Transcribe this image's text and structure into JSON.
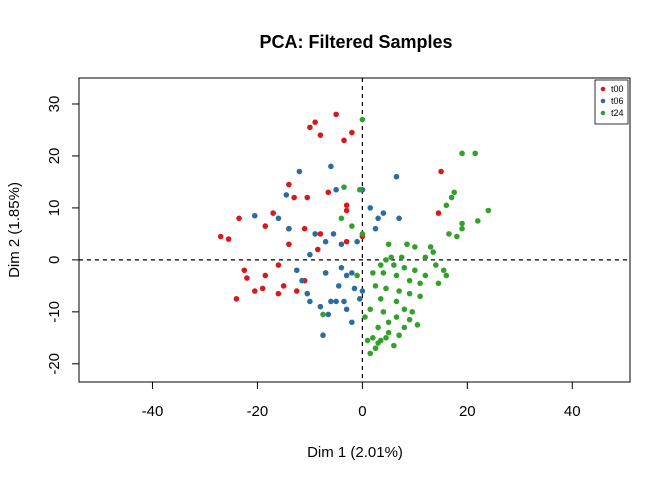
{
  "chart_data": {
    "type": "scatter",
    "title": "PCA: Filtered Samples",
    "xlabel": "Dim 1 (2.01%)",
    "ylabel": "Dim 2 (1.85%)",
    "xlim": [
      -54,
      51
    ],
    "ylim": [
      -23.5,
      35
    ],
    "xticks": [
      -40,
      -20,
      0,
      20,
      40
    ],
    "yticks": [
      -20,
      -10,
      0,
      10,
      20,
      30
    ],
    "reference_lines": {
      "vertical": 0,
      "horizontal": 0,
      "style": "dashed"
    },
    "grid": false,
    "legend_position": "top-right",
    "series": [
      {
        "name": "t00",
        "color": "#d7191c",
        "points": [
          [
            -9,
            26.5
          ],
          [
            -10,
            25.5
          ],
          [
            -5,
            28
          ],
          [
            -8,
            24
          ],
          [
            -3.5,
            23
          ],
          [
            -2,
            24.5
          ],
          [
            15,
            17
          ],
          [
            -14,
            14.5
          ],
          [
            -13,
            12
          ],
          [
            -10.5,
            12
          ],
          [
            -6.5,
            13
          ],
          [
            -3,
            10.5
          ],
          [
            -3,
            9.5
          ],
          [
            14.5,
            9
          ],
          [
            -17,
            9
          ],
          [
            -23.5,
            8
          ],
          [
            -18.5,
            6.5
          ],
          [
            -11,
            6
          ],
          [
            -14,
            6
          ],
          [
            -8,
            5
          ],
          [
            -3,
            3.5
          ],
          [
            0,
            4.5
          ],
          [
            -27,
            4.5
          ],
          [
            -25.5,
            4
          ],
          [
            -14,
            3
          ],
          [
            -8.5,
            2
          ],
          [
            -22.5,
            -2
          ],
          [
            -7,
            -2.5
          ],
          [
            -18.5,
            -3
          ],
          [
            -16,
            -1
          ],
          [
            -15,
            -5
          ],
          [
            -11,
            -4
          ],
          [
            -12.5,
            -6
          ],
          [
            -16,
            -6.5
          ],
          [
            -22,
            -3.5
          ],
          [
            -19,
            -5.5
          ],
          [
            -24,
            -7.5
          ],
          [
            -20.5,
            -6
          ]
        ]
      },
      {
        "name": "t06",
        "color": "#2c6ca4",
        "points": [
          [
            -6,
            18
          ],
          [
            -12,
            17
          ],
          [
            6.5,
            16
          ],
          [
            -5,
            13.5
          ],
          [
            0,
            13.5
          ],
          [
            -14.5,
            12.5
          ],
          [
            1.5,
            10
          ],
          [
            4,
            9
          ],
          [
            -20.5,
            8.5
          ],
          [
            3,
            8
          ],
          [
            7,
            8
          ],
          [
            -16,
            8
          ],
          [
            -14,
            6
          ],
          [
            2.5,
            6
          ],
          [
            -9,
            5
          ],
          [
            -5.5,
            5
          ],
          [
            -1,
            3.5
          ],
          [
            -7,
            3.5
          ],
          [
            -4,
            3
          ],
          [
            -10,
            1
          ],
          [
            -12.5,
            -2
          ],
          [
            -4,
            -1.5
          ],
          [
            -7,
            -2.5
          ],
          [
            -2,
            -2.5
          ],
          [
            -3,
            -3
          ],
          [
            -11.5,
            -4
          ],
          [
            -10.5,
            -6.5
          ],
          [
            -4.5,
            -5
          ],
          [
            -1.5,
            -5.5
          ],
          [
            0,
            -6
          ],
          [
            -3.5,
            -8
          ],
          [
            -0.5,
            -7.5
          ],
          [
            -5,
            -8
          ],
          [
            -6,
            -8
          ],
          [
            -10,
            -8
          ],
          [
            -8,
            -9
          ],
          [
            -3,
            -9.5
          ],
          [
            -7.5,
            -14.5
          ],
          [
            -6.5,
            -10.5
          ],
          [
            -2,
            -12
          ]
        ]
      },
      {
        "name": "t24",
        "color": "#33a02c",
        "points": [
          [
            0,
            27
          ],
          [
            19,
            20.5
          ],
          [
            21.5,
            20.5
          ],
          [
            17.5,
            13
          ],
          [
            17,
            12
          ],
          [
            16,
            10.5
          ],
          [
            24,
            9.5
          ],
          [
            22,
            7.5
          ],
          [
            19,
            7
          ],
          [
            19,
            6
          ],
          [
            16.5,
            5
          ],
          [
            18,
            4.5
          ],
          [
            -3.5,
            14
          ],
          [
            -0.5,
            13.5
          ],
          [
            -4,
            8
          ],
          [
            -2,
            6.5
          ],
          [
            0,
            5
          ],
          [
            5,
            3
          ],
          [
            8.5,
            3
          ],
          [
            10,
            2.5
          ],
          [
            13,
            2.5
          ],
          [
            13.5,
            1.5
          ],
          [
            12,
            0.5
          ],
          [
            7.5,
            0.5
          ],
          [
            5.5,
            0.5
          ],
          [
            4.5,
            0
          ],
          [
            3.5,
            -1
          ],
          [
            6,
            -1
          ],
          [
            8,
            -1.5
          ],
          [
            10,
            -2
          ],
          [
            12,
            -3
          ],
          [
            14,
            -1
          ],
          [
            15.5,
            -2
          ],
          [
            16,
            -3
          ],
          [
            14.5,
            -4.5
          ],
          [
            11,
            -4.5
          ],
          [
            9,
            -4
          ],
          [
            6.5,
            -3
          ],
          [
            4,
            -2.5
          ],
          [
            2,
            -2.5
          ],
          [
            2.5,
            -5
          ],
          [
            4.5,
            -5.5
          ],
          [
            7,
            -6
          ],
          [
            9,
            -6.5
          ],
          [
            11,
            -7
          ],
          [
            3.5,
            -7.5
          ],
          [
            6.5,
            -8
          ],
          [
            1.5,
            -9.5
          ],
          [
            4,
            -10
          ],
          [
            8,
            -9.5
          ],
          [
            9.5,
            -10
          ],
          [
            6.5,
            -11
          ],
          [
            9,
            -11.5
          ],
          [
            10.5,
            -12.5
          ],
          [
            8,
            -13
          ],
          [
            -7.5,
            -10.5
          ],
          [
            0.5,
            -11
          ],
          [
            5,
            -12
          ],
          [
            3,
            -13
          ],
          [
            5,
            -14
          ],
          [
            7,
            -14.5
          ],
          [
            2,
            -15
          ],
          [
            1,
            -15.5
          ],
          [
            4.5,
            -15
          ],
          [
            6,
            -16.5
          ],
          [
            2.5,
            -17
          ],
          [
            3.5,
            -15.5
          ],
          [
            1.5,
            -18
          ],
          [
            3,
            -16
          ],
          [
            -1,
            -3
          ]
        ]
      }
    ]
  }
}
